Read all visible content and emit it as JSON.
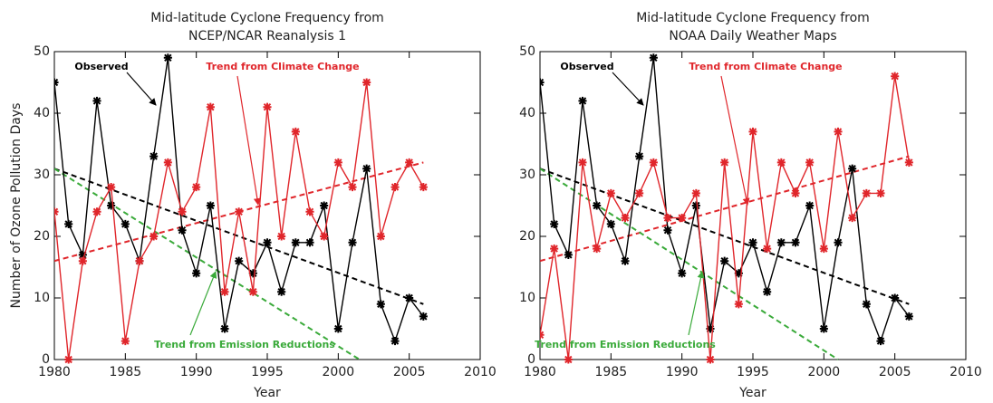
{
  "chart_data": [
    {
      "type": "line",
      "title": [
        "Mid-latitude Cyclone Frequency from",
        "NCEP/NCAR Reanalysis 1"
      ],
      "xlabel": "Year",
      "ylabel": "Number of Ozone Pollution Days",
      "xlim": [
        1980,
        2010
      ],
      "ylim": [
        0,
        50
      ],
      "xticks": [
        1980,
        1985,
        1990,
        1995,
        2000,
        2005,
        2010
      ],
      "yticks": [
        0,
        10,
        20,
        30,
        40,
        50
      ],
      "x": [
        1980,
        1981,
        1982,
        1983,
        1984,
        1985,
        1986,
        1987,
        1988,
        1989,
        1990,
        1991,
        1992,
        1993,
        1994,
        1995,
        1996,
        1997,
        1998,
        1999,
        2000,
        2001,
        2002,
        2003,
        2004,
        2005,
        2006
      ],
      "series": [
        {
          "color": "#000000",
          "values": [
            45,
            22,
            17,
            42,
            25,
            22,
            16,
            33,
            49,
            21,
            14,
            25,
            5,
            16,
            14,
            19,
            11,
            19,
            19,
            25,
            5,
            19,
            31,
            9,
            3,
            10,
            7
          ]
        },
        {
          "color": "#e0262b",
          "values": [
            24,
            0,
            16,
            24,
            28,
            3,
            16,
            20,
            32,
            24,
            28,
            41,
            11,
            24,
            11,
            41,
            20,
            37,
            24,
            20,
            32,
            28,
            45,
            20,
            28,
            32,
            28
          ]
        }
      ],
      "trends": [
        {
          "color": "#000000",
          "x": [
            1980,
            2006
          ],
          "values": [
            31,
            9
          ]
        },
        {
          "color": "#e0262b",
          "x": [
            1980,
            2006
          ],
          "values": [
            16,
            32
          ]
        },
        {
          "color": "#3aaa3a",
          "x": [
            1980,
            2001.5
          ],
          "values": [
            31,
            0
          ]
        }
      ],
      "annotations": [
        "Observed",
        "Trend from Climate Change",
        "Trend from Emission Reductions"
      ]
    },
    {
      "type": "line",
      "title": [
        "Mid-latitude Cyclone Frequency from",
        "NOAA Daily Weather Maps"
      ],
      "xlabel": "Year",
      "xlim": [
        1980,
        2010
      ],
      "ylim": [
        0,
        50
      ],
      "xticks": [
        1980,
        1985,
        1990,
        1995,
        2000,
        2005,
        2010
      ],
      "yticks": [
        0,
        10,
        20,
        30,
        40,
        50
      ],
      "x": [
        1980,
        1981,
        1982,
        1983,
        1984,
        1985,
        1986,
        1987,
        1988,
        1989,
        1990,
        1991,
        1992,
        1993,
        1994,
        1995,
        1996,
        1997,
        1998,
        1999,
        2000,
        2001,
        2002,
        2003,
        2004,
        2005,
        2006
      ],
      "series": [
        {
          "color": "#000000",
          "values": [
            45,
            22,
            17,
            42,
            25,
            22,
            16,
            33,
            49,
            21,
            14,
            25,
            5,
            16,
            14,
            19,
            11,
            19,
            19,
            25,
            5,
            19,
            31,
            9,
            3,
            10,
            7
          ]
        },
        {
          "color": "#e0262b",
          "values": [
            4,
            18,
            0,
            32,
            18,
            27,
            23,
            27,
            32,
            23,
            23,
            27,
            0,
            32,
            9,
            37,
            18,
            32,
            27,
            32,
            18,
            37,
            23,
            27,
            27,
            46,
            32
          ]
        }
      ],
      "trends": [
        {
          "color": "#000000",
          "x": [
            1980,
            2006
          ],
          "values": [
            31,
            9
          ]
        },
        {
          "color": "#e0262b",
          "x": [
            1980,
            2006
          ],
          "values": [
            16,
            33
          ]
        },
        {
          "color": "#3aaa3a",
          "x": [
            1980,
            2001
          ],
          "values": [
            31,
            0
          ]
        }
      ],
      "annotations": [
        "Observed",
        "Trend from Climate Change",
        "Trend from Emission Reductions"
      ]
    }
  ]
}
